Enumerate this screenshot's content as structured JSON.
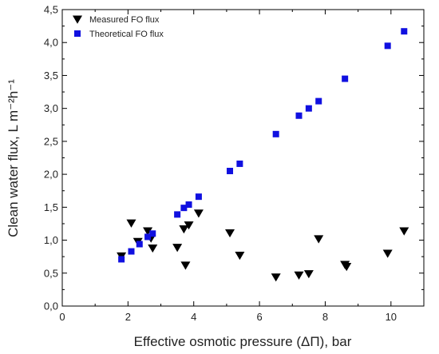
{
  "chart_data": {
    "type": "scatter",
    "title": "",
    "xlabel": "Effective osmotic pressure (ΔΠ), bar",
    "ylabel": "Clean water flux, L m⁻²h⁻¹",
    "xlim": [
      0,
      11
    ],
    "ylim": [
      0,
      4.5
    ],
    "x_ticks": [
      "0",
      "2",
      "4",
      "6",
      "8",
      "10"
    ],
    "y_ticks": [
      "0,0",
      "0,5",
      "1,0",
      "1,5",
      "2,0",
      "2,5",
      "3,0",
      "3,5",
      "4,0",
      "4,5"
    ],
    "grid": false,
    "legend_position": "top-left",
    "series": [
      {
        "name": "Measured FO flux",
        "marker": "triangle-down",
        "color": "#000000",
        "points": [
          [
            1.8,
            0.76
          ],
          [
            2.1,
            1.26
          ],
          [
            2.3,
            0.98
          ],
          [
            2.6,
            1.14
          ],
          [
            2.7,
            1.03
          ],
          [
            2.75,
            0.88
          ],
          [
            3.5,
            0.89
          ],
          [
            3.7,
            1.17
          ],
          [
            3.75,
            0.62
          ],
          [
            3.85,
            1.23
          ],
          [
            4.15,
            1.41
          ],
          [
            5.1,
            1.11
          ],
          [
            5.4,
            0.77
          ],
          [
            6.5,
            0.44
          ],
          [
            7.2,
            0.47
          ],
          [
            7.5,
            0.49
          ],
          [
            7.8,
            1.02
          ],
          [
            8.6,
            0.63
          ],
          [
            8.65,
            0.6
          ],
          [
            9.9,
            0.8
          ],
          [
            10.4,
            1.14
          ]
        ]
      },
      {
        "name": "Theoretical FO flux",
        "marker": "square",
        "color": "#1010e0",
        "points": [
          [
            1.8,
            0.71
          ],
          [
            2.1,
            0.83
          ],
          [
            2.35,
            0.94
          ],
          [
            2.6,
            1.05
          ],
          [
            2.75,
            1.1
          ],
          [
            3.5,
            1.39
          ],
          [
            3.7,
            1.49
          ],
          [
            3.85,
            1.54
          ],
          [
            4.15,
            1.66
          ],
          [
            5.1,
            2.05
          ],
          [
            5.4,
            2.16
          ],
          [
            6.5,
            2.61
          ],
          [
            7.2,
            2.89
          ],
          [
            7.5,
            3.0
          ],
          [
            7.8,
            3.11
          ],
          [
            8.6,
            3.45
          ],
          [
            9.9,
            3.95
          ],
          [
            10.4,
            4.17
          ]
        ]
      }
    ]
  }
}
